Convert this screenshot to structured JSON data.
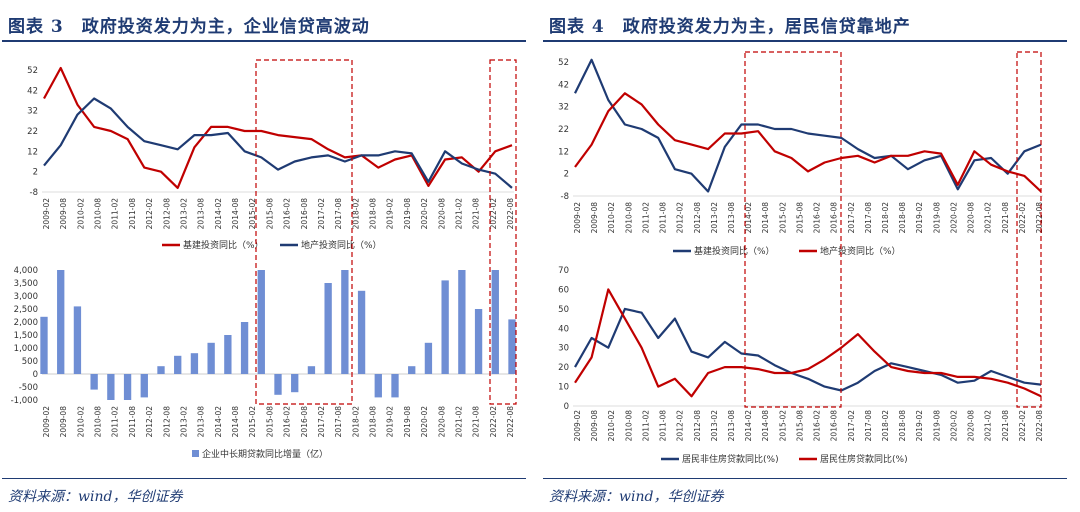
{
  "left": {
    "title": "图表 3　政府投资发力为主，企业信贷高波动",
    "source": "资料来源：wind，华创证券"
  },
  "right": {
    "title": "图表 4　政府投资发力为主，居民信贷靠地产",
    "source": "资料来源：wind，华创证券"
  },
  "colors": {
    "red": "#c00000",
    "navy": "#1f3b73",
    "bar": "#6f8ed4",
    "highlight": "#c00000"
  },
  "chart_data": [
    {
      "id": "fig3-top",
      "type": "line",
      "ylim": [
        -8,
        52
      ],
      "yticks": [
        "52",
        "42",
        "32",
        "22",
        "12",
        "2",
        "-8"
      ],
      "xticks": [
        "2009-02",
        "2009-08",
        "2010-02",
        "2010-08",
        "2011-02",
        "2011-08",
        "2012-02",
        "2012-08",
        "2013-02",
        "2013-08",
        "2014-02",
        "2014-08",
        "2015-02",
        "2015-08",
        "2016-02",
        "2016-08",
        "2017-02",
        "2017-08",
        "2018-02",
        "2018-08",
        "2019-02",
        "2019-08",
        "2020-02",
        "2020-08",
        "2021-02",
        "2021-08",
        "2022-02",
        "2022-08"
      ],
      "series": [
        {
          "name": "基建投资同比（%）",
          "color": "#c00000",
          "values": [
            38,
            53,
            35,
            24,
            22,
            18,
            4,
            2,
            -6,
            14,
            24,
            24,
            22,
            22,
            20,
            19,
            18,
            13,
            9,
            10,
            4,
            8,
            10,
            -5,
            8,
            9,
            2,
            12,
            15
          ]
        },
        {
          "name": "地产投资同比（%）",
          "color": "#1f3b73",
          "values": [
            5,
            15,
            30,
            38,
            33,
            24,
            17,
            15,
            13,
            20,
            20,
            21,
            12,
            9,
            3,
            7,
            9,
            10,
            7,
            10,
            10,
            12,
            11,
            -3,
            12,
            6,
            3,
            1,
            -6
          ]
        }
      ]
    },
    {
      "id": "fig3-bottom",
      "type": "bar",
      "ylim": [
        -1000,
        4000
      ],
      "yticks": [
        "4,000",
        "3,500",
        "3,000",
        "2,500",
        "2,000",
        "1,500",
        "1,000",
        "500",
        "0",
        "-500",
        "-1,000"
      ],
      "xticks": [
        "2009-02",
        "2009-08",
        "2010-02",
        "2010-08",
        "2011-02",
        "2011-08",
        "2012-02",
        "2012-08",
        "2013-02",
        "2013-08",
        "2014-02",
        "2014-08",
        "2015-02",
        "2015-08",
        "2016-02",
        "2016-08",
        "2017-02",
        "2017-08",
        "2018-02",
        "2018-08",
        "2019-02",
        "2019-08",
        "2020-02",
        "2020-08",
        "2021-02",
        "2021-08",
        "2022-02",
        "2022-08"
      ],
      "series": [
        {
          "name": "企业中长期贷款同比增量（亿）",
          "color": "#6f8ed4",
          "values": [
            2200,
            4000,
            2600,
            -600,
            -1000,
            -1000,
            -900,
            300,
            700,
            800,
            1200,
            1500,
            2000,
            4000,
            -800,
            -700,
            300,
            3500,
            4000,
            3200,
            -900,
            -900,
            300,
            1200,
            3600,
            4000,
            2500,
            4000,
            2100
          ]
        }
      ]
    },
    {
      "id": "fig4-top",
      "type": "line",
      "ylim": [
        -8,
        52
      ],
      "yticks": [
        "52",
        "42",
        "32",
        "22",
        "12",
        "2",
        "-8"
      ],
      "xticks": [
        "2009-02",
        "2009-08",
        "2010-02",
        "2010-08",
        "2011-02",
        "2011-08",
        "2012-02",
        "2012-08",
        "2013-02",
        "2013-08",
        "2014-02",
        "2014-08",
        "2015-02",
        "2015-08",
        "2016-02",
        "2016-08",
        "2017-02",
        "2017-08",
        "2018-02",
        "2018-08",
        "2019-02",
        "2019-08",
        "2020-02",
        "2020-08",
        "2021-02",
        "2021-08",
        "2022-02",
        "2022-08"
      ],
      "series": [
        {
          "name": "基建投资同比（%）",
          "color": "#1f3b73",
          "values": [
            38,
            53,
            35,
            24,
            22,
            18,
            4,
            2,
            -6,
            14,
            24,
            24,
            22,
            22,
            20,
            19,
            18,
            13,
            9,
            10,
            4,
            8,
            10,
            -5,
            8,
            9,
            2,
            12,
            15
          ]
        },
        {
          "name": "地产投资同比（%）",
          "color": "#c00000",
          "values": [
            5,
            15,
            30,
            38,
            33,
            24,
            17,
            15,
            13,
            20,
            20,
            21,
            12,
            9,
            3,
            7,
            9,
            10,
            7,
            10,
            10,
            12,
            11,
            -3,
            12,
            6,
            3,
            1,
            -6
          ]
        }
      ]
    },
    {
      "id": "fig4-bottom",
      "type": "line",
      "ylim": [
        0,
        70
      ],
      "yticks": [
        "70",
        "60",
        "50",
        "40",
        "30",
        "20",
        "10",
        "0"
      ],
      "xticks": [
        "2009-02",
        "2009-08",
        "2010-02",
        "2010-08",
        "2011-02",
        "2011-08",
        "2012-02",
        "2012-08",
        "2013-02",
        "2013-08",
        "2014-02",
        "2014-08",
        "2015-02",
        "2015-08",
        "2016-02",
        "2016-08",
        "2017-02",
        "2017-08",
        "2018-02",
        "2018-08",
        "2019-02",
        "2019-08",
        "2020-02",
        "2020-08",
        "2021-02",
        "2021-08",
        "2022-02",
        "2022-08"
      ],
      "series": [
        {
          "name": "居民非住房贷款同比(%)",
          "color": "#1f3b73",
          "values": [
            20,
            35,
            30,
            50,
            48,
            35,
            45,
            28,
            25,
            33,
            27,
            26,
            21,
            17,
            14,
            10,
            8,
            12,
            18,
            22,
            20,
            18,
            16,
            12,
            13,
            18,
            15,
            12,
            11
          ]
        },
        {
          "name": "居民住房贷款同比(%)",
          "color": "#c00000",
          "values": [
            12,
            25,
            60,
            45,
            30,
            10,
            14,
            5,
            17,
            20,
            20,
            19,
            17,
            17,
            19,
            24,
            30,
            37,
            28,
            20,
            18,
            17,
            17,
            15,
            15,
            14,
            12,
            9,
            5
          ]
        }
      ]
    }
  ]
}
